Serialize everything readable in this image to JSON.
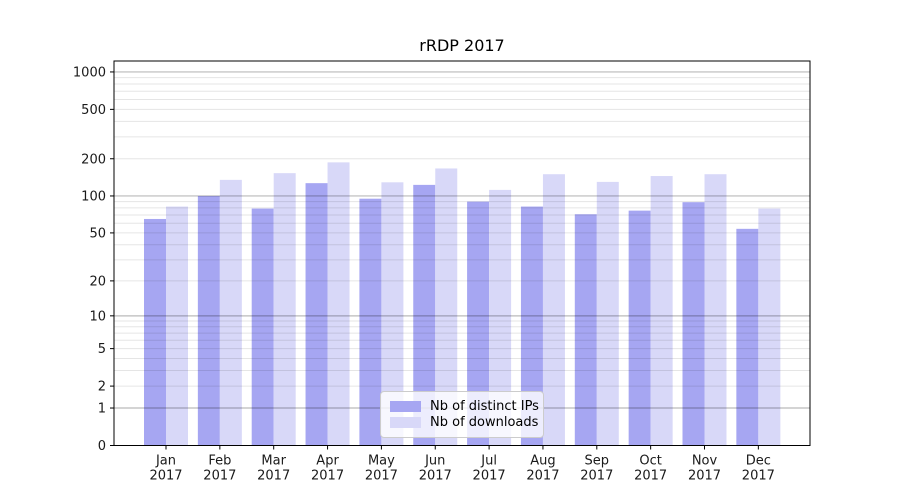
{
  "chart_data": {
    "type": "bar",
    "title": "rRDP 2017",
    "categories": [
      "Jan\n2017",
      "Feb\n2017",
      "Mar\n2017",
      "Apr\n2017",
      "May\n2017",
      "Jun\n2017",
      "Jul\n2017",
      "Aug\n2017",
      "Sep\n2017",
      "Oct\n2017",
      "Nov\n2017",
      "Dec\n2017"
    ],
    "series": [
      {
        "name": "Nb of distinct IPs",
        "color": "#a6a6f2",
        "values": [
          65,
          100,
          79,
          127,
          95,
          123,
          90,
          82,
          71,
          76,
          89,
          54
        ]
      },
      {
        "name": "Nb of downloads",
        "color": "#d8d8f8",
        "values": [
          82,
          135,
          153,
          187,
          129,
          167,
          112,
          150,
          130,
          145,
          150,
          79
        ]
      }
    ],
    "yscale": "symlog-log1p",
    "y_ticks": [
      0,
      1,
      2,
      5,
      10,
      20,
      50,
      100,
      200,
      500,
      1000
    ],
    "ylim": [
      0,
      1200
    ],
    "xlabel": "",
    "ylabel": "",
    "grid": "both",
    "legend_position": "lower center"
  },
  "style": {
    "background": "#ffffff",
    "spine_color": "#000000",
    "tick_label_color": "#1a1a1a",
    "major_grid_rgba": "rgba(0,0,0,0.27)",
    "minor_grid_rgba": "rgba(0,0,0,0.10)"
  }
}
